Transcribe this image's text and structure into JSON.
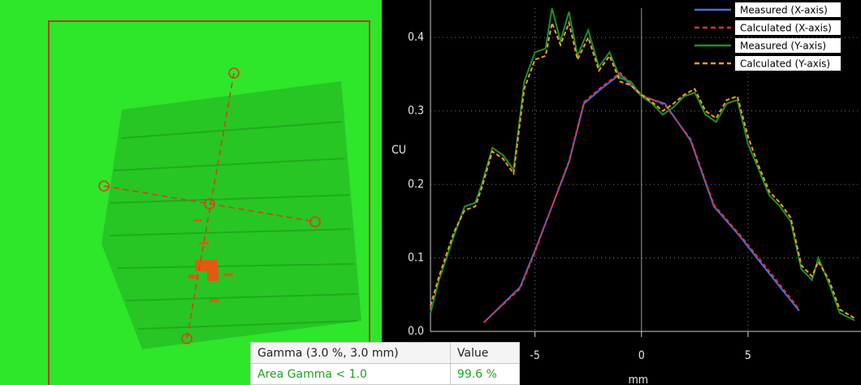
{
  "chart_data": {
    "type": "line",
    "y_label": "CU",
    "x_label": "mm",
    "xlim": [
      -9.9,
      10.3
    ],
    "ylim": [
      0,
      0.44
    ],
    "xticks": [
      -5,
      0,
      5
    ],
    "yticks": [
      {
        "value": 0,
        "label": "0.0"
      },
      0.1,
      0.2,
      0.3,
      0.4
    ],
    "grid": true,
    "legend": "upper right",
    "series": [
      {
        "name": "Measured (X-axis)",
        "color": "#4a6ee0",
        "dashed": false,
        "x": [
          -7.4,
          -5.7,
          -5,
          -3.4,
          -2.7,
          -1.9,
          -1,
          0,
          1.1,
          2.3,
          3.4,
          4.6,
          6.1,
          7.4
        ],
        "values": [
          0.012,
          0.06,
          0.11,
          0.23,
          0.31,
          0.33,
          0.35,
          0.32,
          0.31,
          0.26,
          0.17,
          0.13,
          0.075,
          0.028
        ]
      },
      {
        "name": "Calculated (X-axis)",
        "color": "#e0303a",
        "dashed": true,
        "x": [
          -7.4,
          -5.7,
          -5,
          -3.4,
          -2.7,
          -1.9,
          -1,
          0,
          1.1,
          2.3,
          3.4,
          4.6,
          6.1,
          7.4
        ],
        "values": [
          0.012,
          0.058,
          0.108,
          0.232,
          0.312,
          0.332,
          0.352,
          0.322,
          0.308,
          0.262,
          0.172,
          0.132,
          0.078,
          0.03
        ]
      },
      {
        "name": "Measured (Y-axis)",
        "color": "#1f8f2a",
        "dashed": false,
        "x": [
          -9.9,
          -9.5,
          -8.8,
          -8.3,
          -7.8,
          -7.5,
          -7,
          -6.5,
          -6,
          -5.5,
          -5,
          -4.5,
          -4.2,
          -3.8,
          -3.4,
          -3,
          -2.5,
          -2,
          -1.5,
          -1,
          -0.5,
          0,
          0.5,
          1,
          1.5,
          2,
          2.5,
          3,
          3.5,
          4,
          4.5,
          5,
          5.5,
          6,
          6.5,
          7,
          7.5,
          8,
          8.3,
          8.8,
          9.3,
          10
        ],
        "values": [
          0.025,
          0.07,
          0.13,
          0.17,
          0.175,
          0.2,
          0.25,
          0.24,
          0.22,
          0.34,
          0.38,
          0.385,
          0.44,
          0.395,
          0.435,
          0.375,
          0.41,
          0.36,
          0.38,
          0.345,
          0.34,
          0.32,
          0.31,
          0.295,
          0.305,
          0.32,
          0.325,
          0.295,
          0.285,
          0.31,
          0.315,
          0.255,
          0.22,
          0.185,
          0.17,
          0.15,
          0.085,
          0.07,
          0.1,
          0.065,
          0.025,
          0.015
        ]
      },
      {
        "name": "Calculated (Y-axis)",
        "color": "#f0a020",
        "dashed": true,
        "x": [
          -9.9,
          -9.5,
          -8.8,
          -8.3,
          -7.8,
          -7.5,
          -7,
          -6.5,
          -6,
          -5.5,
          -5,
          -4.5,
          -4.2,
          -3.8,
          -3.4,
          -3,
          -2.5,
          -2,
          -1.5,
          -1,
          -0.5,
          0,
          0.5,
          1,
          1.5,
          2,
          2.5,
          3,
          3.5,
          4,
          4.5,
          5,
          5.5,
          6,
          6.5,
          7,
          7.5,
          8,
          8.3,
          8.8,
          9.3,
          10
        ],
        "values": [
          0.035,
          0.075,
          0.135,
          0.165,
          0.17,
          0.195,
          0.245,
          0.235,
          0.215,
          0.33,
          0.37,
          0.375,
          0.42,
          0.39,
          0.42,
          0.37,
          0.4,
          0.355,
          0.375,
          0.34,
          0.335,
          0.322,
          0.312,
          0.3,
          0.31,
          0.322,
          0.33,
          0.3,
          0.29,
          0.315,
          0.32,
          0.265,
          0.225,
          0.19,
          0.175,
          0.155,
          0.09,
          0.075,
          0.095,
          0.07,
          0.03,
          0.018
        ]
      }
    ]
  },
  "table": {
    "headers": [
      "Gamma (3.0 %, 3.0 mm)",
      "Value"
    ],
    "rows": [
      [
        "Area Gamma < 1.0",
        "99.6 %"
      ]
    ]
  }
}
